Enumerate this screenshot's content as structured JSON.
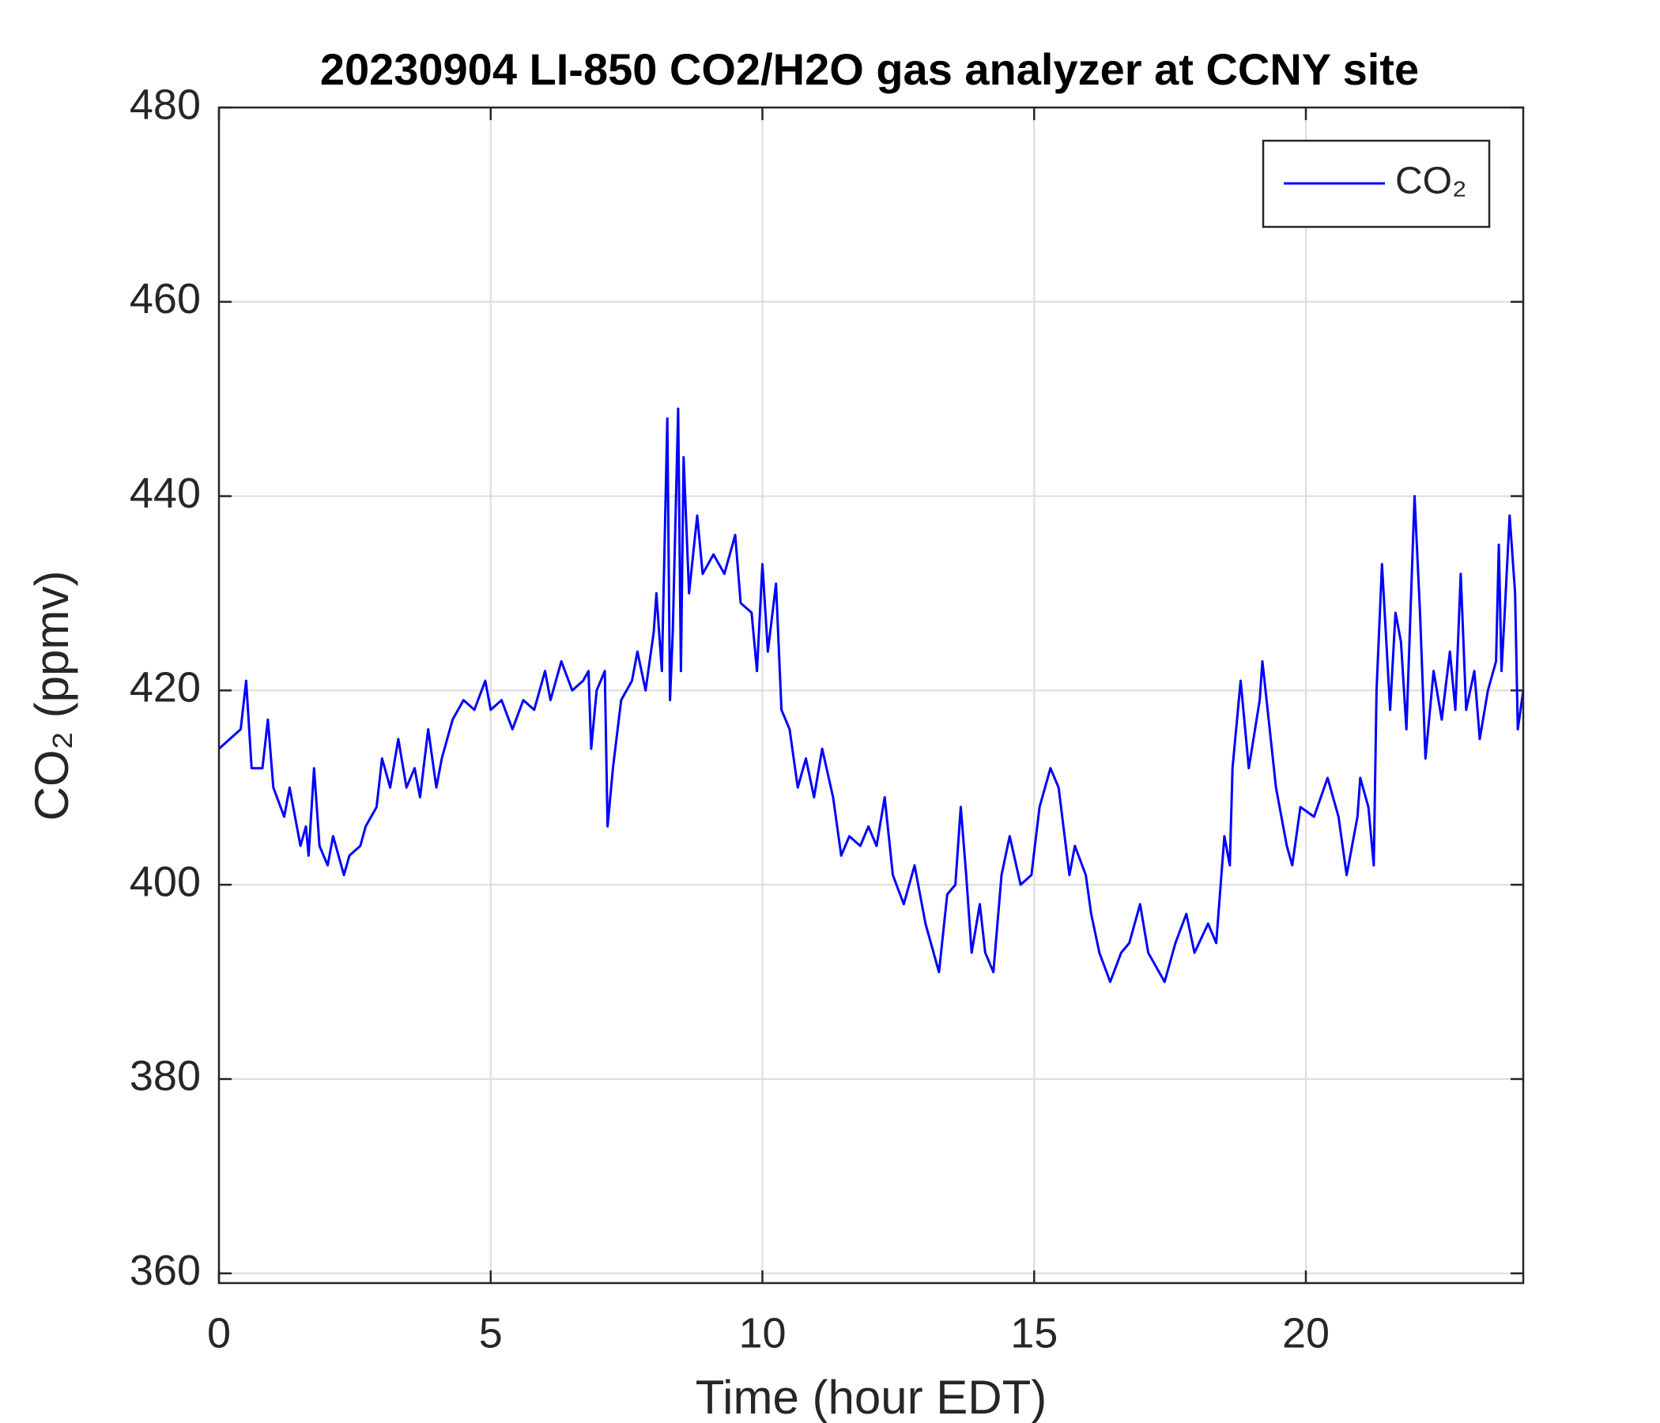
{
  "chart_data": {
    "type": "line",
    "title": "20230904 LI-850 CO2/H2O gas analyzer at CCNY site",
    "x_label": "Time (hour EDT)",
    "y_label": "CO₂ (ppmv)",
    "xlim": [
      0,
      24
    ],
    "ylim": [
      359,
      480
    ],
    "xticks": [
      0,
      5,
      10,
      15,
      20
    ],
    "yticks": [
      360,
      380,
      400,
      420,
      440,
      460,
      480
    ],
    "grid": true,
    "legend": "upper right",
    "x": [
      0,
      0.4,
      0.5,
      0.6,
      0.8,
      0.9,
      1.0,
      1.2,
      1.3,
      1.5,
      1.6,
      1.65,
      1.75,
      1.85,
      2.0,
      2.1,
      2.3,
      2.4,
      2.6,
      2.7,
      2.9,
      3.0,
      3.15,
      3.3,
      3.45,
      3.6,
      3.7,
      3.85,
      4.0,
      4.1,
      4.3,
      4.5,
      4.7,
      4.9,
      5.0,
      5.2,
      5.4,
      5.6,
      5.8,
      6.0,
      6.1,
      6.3,
      6.5,
      6.7,
      6.8,
      6.85,
      6.95,
      7.1,
      7.15,
      7.25,
      7.4,
      7.6,
      7.7,
      7.85,
      8.0,
      8.05,
      8.15,
      8.25,
      8.3,
      8.35,
      8.45,
      8.5,
      8.55,
      8.65,
      8.8,
      8.9,
      9.1,
      9.3,
      9.5,
      9.6,
      9.8,
      9.9,
      10.0,
      10.1,
      10.25,
      10.35,
      10.5,
      10.65,
      10.8,
      10.95,
      11.1,
      11.3,
      11.45,
      11.6,
      11.8,
      11.95,
      12.1,
      12.25,
      12.4,
      12.6,
      12.8,
      13.0,
      13.1,
      13.25,
      13.4,
      13.55,
      13.65,
      13.75,
      13.85,
      14.0,
      14.1,
      14.25,
      14.4,
      14.55,
      14.75,
      14.95,
      15.1,
      15.3,
      15.45,
      15.65,
      15.75,
      15.95,
      16.05,
      16.2,
      16.4,
      16.6,
      16.75,
      16.95,
      17.1,
      17.4,
      17.6,
      17.8,
      17.95,
      18.2,
      18.35,
      18.5,
      18.6,
      18.65,
      18.8,
      18.95,
      19.15,
      19.2,
      19.45,
      19.65,
      19.75,
      19.9,
      20.15,
      20.4,
      20.6,
      20.75,
      20.95,
      21.0,
      21.15,
      21.25,
      21.3,
      21.4,
      21.55,
      21.65,
      21.75,
      21.85,
      22.0,
      22.1,
      22.2,
      22.35,
      22.5,
      22.65,
      22.75,
      22.85,
      22.95,
      23.1,
      23.2,
      23.35,
      23.5,
      23.55,
      23.6,
      23.65,
      23.75,
      23.85,
      23.9,
      24.0
    ],
    "series": [
      {
        "name": "CO₂",
        "color": "#0000ff",
        "values": [
          414,
          416,
          421,
          412,
          412,
          417,
          410,
          407,
          410,
          404,
          406,
          403,
          412,
          404,
          402,
          405,
          401,
          403,
          404,
          406,
          408,
          413,
          410,
          415,
          410,
          412,
          409,
          416,
          410,
          413,
          417,
          419,
          418,
          421,
          418,
          419,
          416,
          419,
          418,
          422,
          419,
          423,
          420,
          421,
          422,
          414,
          420,
          422,
          406,
          412,
          419,
          421,
          424,
          420,
          426,
          430,
          422,
          448,
          419,
          426,
          449,
          422,
          444,
          430,
          438,
          432,
          434,
          432,
          436,
          429,
          428,
          422,
          433,
          424,
          431,
          418,
          416,
          410,
          413,
          409,
          414,
          409,
          403,
          405,
          404,
          406,
          404,
          409,
          401,
          398,
          402,
          396,
          394,
          391,
          399,
          400,
          408,
          401,
          393,
          398,
          393,
          391,
          401,
          405,
          400,
          401,
          408,
          412,
          410,
          401,
          404,
          401,
          397,
          393,
          390,
          393,
          394,
          398,
          393,
          390,
          394,
          397,
          393,
          396,
          394,
          405,
          402,
          412,
          421,
          412,
          419,
          423,
          410,
          404,
          402,
          408,
          407,
          411,
          407,
          401,
          407,
          411,
          408,
          402,
          420,
          433,
          418,
          428,
          425,
          416,
          440,
          428,
          413,
          422,
          417,
          424,
          418,
          432,
          418,
          422,
          415,
          420,
          423,
          435,
          422,
          427,
          438,
          430,
          416,
          420
        ]
      }
    ]
  }
}
